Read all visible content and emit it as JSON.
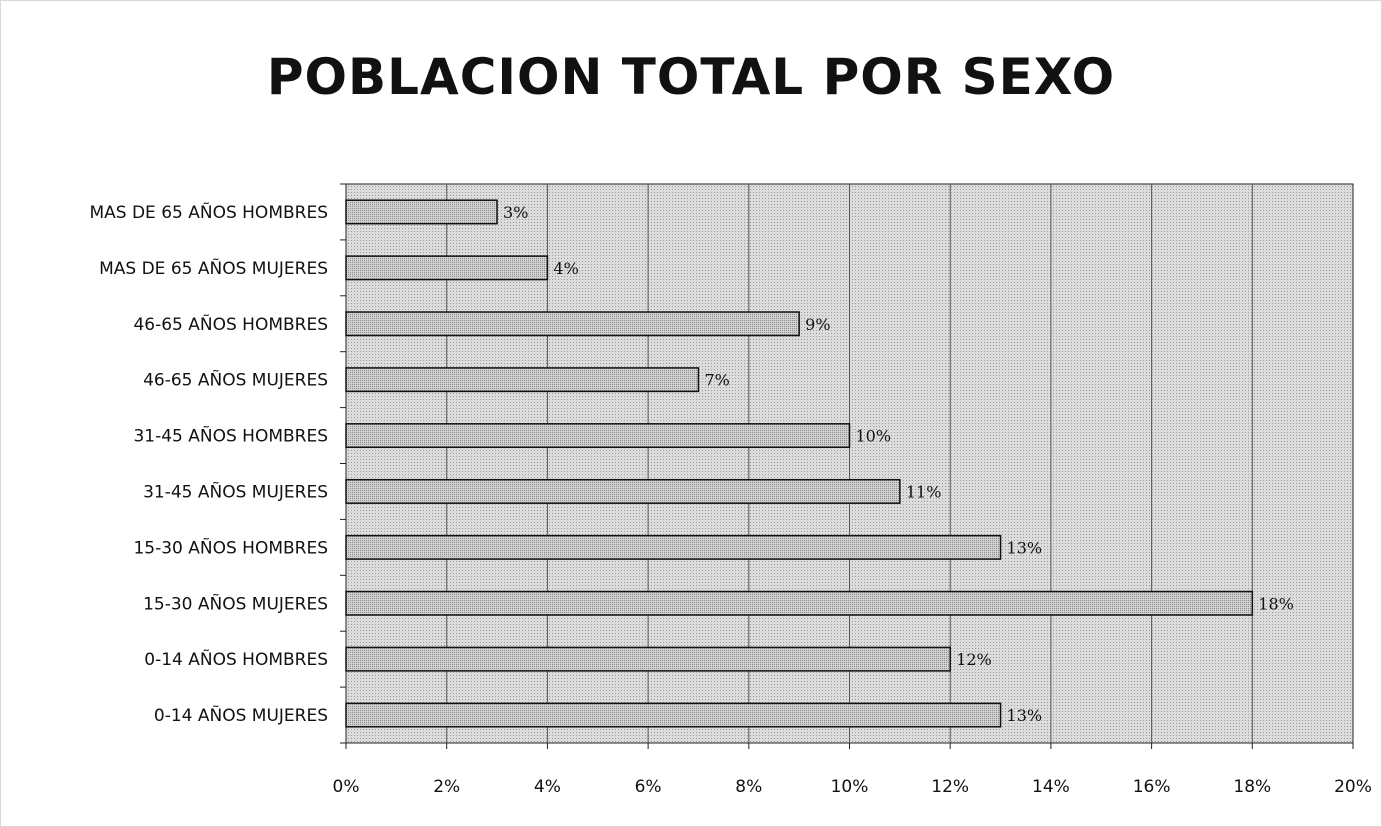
{
  "chart_data": {
    "type": "bar",
    "orientation": "horizontal",
    "title": "POBLACION TOTAL POR SEXO",
    "categories": [
      "MAS DE 65 AÑOS HOMBRES",
      "MAS DE 65 AÑOS MUJERES",
      "46-65 AÑOS HOMBRES",
      "46-65 AÑOS MUJERES",
      "31-45 AÑOS HOMBRES",
      "31-45 AÑOS MUJERES",
      "15-30 AÑOS HOMBRES",
      "15-30 AÑOS MUJERES",
      "0-14 AÑOS HOMBRES",
      "0-14 AÑOS MUJERES"
    ],
    "values": [
      3,
      4,
      9,
      7,
      10,
      11,
      13,
      18,
      12,
      13
    ],
    "data_labels": [
      "3%",
      "4%",
      "9%",
      "7%",
      "10%",
      "11%",
      "13%",
      "18%",
      "12%",
      "13%"
    ],
    "xlim": [
      0,
      20
    ],
    "x_ticks": [
      "0%",
      "2%",
      "4%",
      "6%",
      "8%",
      "10%",
      "12%",
      "14%",
      "16%",
      "18%",
      "20%"
    ],
    "xlabel": "",
    "ylabel": "",
    "grid": true,
    "legend": "none",
    "colors": {
      "plot_background": "#d4d4d4",
      "bar_fill": "#c8c8c8",
      "bar_stroke": "#111111",
      "grid": "#555555"
    }
  }
}
